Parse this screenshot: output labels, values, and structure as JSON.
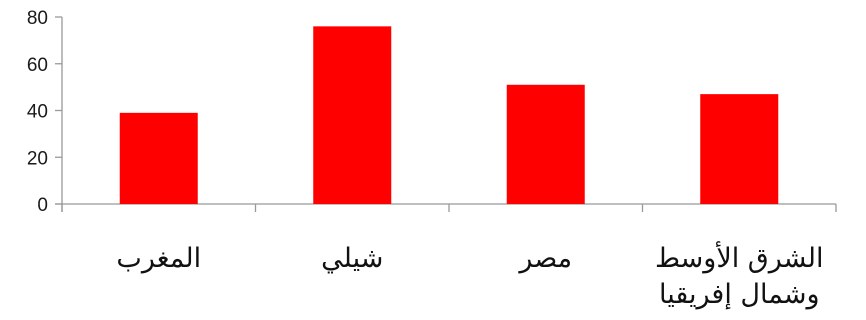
{
  "chart_data": {
    "type": "bar",
    "categories": [
      "المغرب",
      "شيلي",
      "مصر",
      "الشرق الأوسط وشمال إفريقيا"
    ],
    "category_lines": [
      [
        "المغرب"
      ],
      [
        "شيلي"
      ],
      [
        "مصر"
      ],
      [
        "الشرق الأوسط",
        "وشمال إفريقيا"
      ]
    ],
    "values": [
      39,
      76,
      51,
      47
    ],
    "ylim": [
      0,
      80
    ],
    "yticks": [
      0,
      20,
      40,
      60,
      80
    ],
    "grid": false,
    "legend": "none",
    "bar_color": "#ff0000",
    "axis_color": "#999999"
  }
}
